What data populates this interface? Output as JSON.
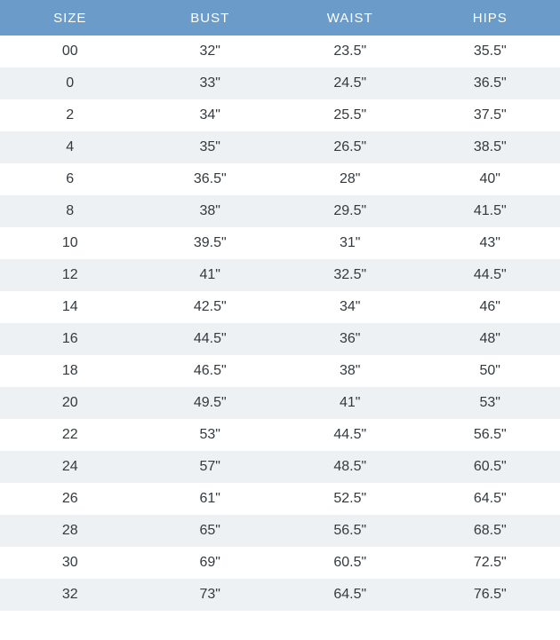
{
  "size_table": {
    "type": "table",
    "header_bg": "#6b9bc9",
    "header_fg": "#ffffff",
    "row_odd_bg": "#ffffff",
    "row_even_bg": "#eef1f4",
    "cell_fg": "#323a40",
    "header_fontsize": 15,
    "cell_fontsize": 16,
    "columns": [
      "SIZE",
      "BUST",
      "WAIST",
      "HIPS"
    ],
    "column_widths_pct": [
      25,
      25,
      25,
      25
    ],
    "rows": [
      [
        "00",
        "32\"",
        "23.5\"",
        "35.5\""
      ],
      [
        "0",
        "33\"",
        "24.5\"",
        "36.5\""
      ],
      [
        "2",
        "34\"",
        "25.5\"",
        "37.5\""
      ],
      [
        "4",
        "35\"",
        "26.5\"",
        "38.5\""
      ],
      [
        "6",
        "36.5\"",
        "28\"",
        "40\""
      ],
      [
        "8",
        "38\"",
        "29.5\"",
        "41.5\""
      ],
      [
        "10",
        "39.5\"",
        "31\"",
        "43\""
      ],
      [
        "12",
        "41\"",
        "32.5\"",
        "44.5\""
      ],
      [
        "14",
        "42.5\"",
        "34\"",
        "46\""
      ],
      [
        "16",
        "44.5\"",
        "36\"",
        "48\""
      ],
      [
        "18",
        "46.5\"",
        "38\"",
        "50\""
      ],
      [
        "20",
        "49.5\"",
        "41\"",
        "53\""
      ],
      [
        "22",
        "53\"",
        "44.5\"",
        "56.5\""
      ],
      [
        "24",
        "57\"",
        "48.5\"",
        "60.5\""
      ],
      [
        "26",
        "61\"",
        "52.5\"",
        "64.5\""
      ],
      [
        "28",
        "65\"",
        "56.5\"",
        "68.5\""
      ],
      [
        "30",
        "69\"",
        "60.5\"",
        "72.5\""
      ],
      [
        "32",
        "73\"",
        "64.5\"",
        "76.5\""
      ]
    ]
  }
}
